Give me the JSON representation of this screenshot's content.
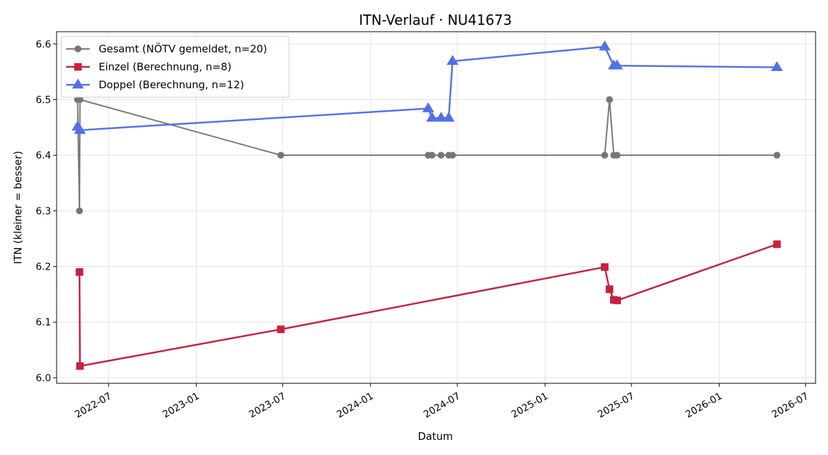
{
  "chart_data": {
    "type": "line",
    "title": "ITN-Verlauf · NU41673",
    "xlabel": "Datum",
    "ylabel": "ITN  (kleiner = besser)",
    "xlim": [
      "2022-03-14",
      "2026-07-22"
    ],
    "ylim": [
      5.99,
      6.622
    ],
    "x_ticks": [
      "2022-07",
      "2023-01",
      "2023-07",
      "2024-01",
      "2024-07",
      "2025-01",
      "2025-07",
      "2026-01",
      "2026-07"
    ],
    "y_ticks": [
      6.0,
      6.1,
      6.2,
      6.3,
      6.4,
      6.5,
      6.6
    ],
    "grid": true,
    "legend_position": "top-left",
    "series": [
      {
        "name": "Gesamt (NÖTV gemeldet, n=20)",
        "color": "#555555",
        "marker": "circle",
        "points": [
          [
            "2022-04-27",
            6.5
          ],
          [
            "2022-05-01",
            6.3
          ],
          [
            "2022-05-02",
            6.5
          ],
          [
            "2023-06-27",
            6.4
          ],
          [
            "2024-05-01",
            6.4
          ],
          [
            "2024-05-09",
            6.4
          ],
          [
            "2024-05-28",
            6.4
          ],
          [
            "2024-06-13",
            6.4
          ],
          [
            "2024-06-21",
            6.4
          ],
          [
            "2025-05-06",
            6.4
          ],
          [
            "2025-05-16",
            6.5
          ],
          [
            "2025-05-25",
            6.4
          ],
          [
            "2025-06-01",
            6.4
          ],
          [
            "2026-05-02",
            6.4
          ]
        ]
      },
      {
        "name": "Einzel (Berechnung, n=8)",
        "color": "#c8213f",
        "marker": "square",
        "points": [
          [
            "2022-05-01",
            6.19
          ],
          [
            "2022-05-02",
            6.021
          ],
          [
            "2023-06-27",
            6.087
          ],
          [
            "2025-05-06",
            6.199
          ],
          [
            "2025-05-16",
            6.159
          ],
          [
            "2025-05-25",
            6.14
          ],
          [
            "2025-06-01",
            6.139
          ],
          [
            "2026-05-02",
            6.24
          ]
        ]
      },
      {
        "name": "Doppel (Berechnung, n=12)",
        "color": "#5470e8",
        "marker": "triangle",
        "points": [
          [
            "2022-04-27",
            6.451
          ],
          [
            "2022-05-02",
            6.445
          ],
          [
            "2024-05-01",
            6.484
          ],
          [
            "2024-05-09",
            6.467
          ],
          [
            "2024-05-28",
            6.467
          ],
          [
            "2024-06-13",
            6.467
          ],
          [
            "2024-06-21",
            6.569
          ],
          [
            "2025-05-06",
            6.595
          ],
          [
            "2025-05-25",
            6.561
          ],
          [
            "2025-06-01",
            6.561
          ],
          [
            "2026-05-02",
            6.558
          ]
        ]
      }
    ]
  }
}
